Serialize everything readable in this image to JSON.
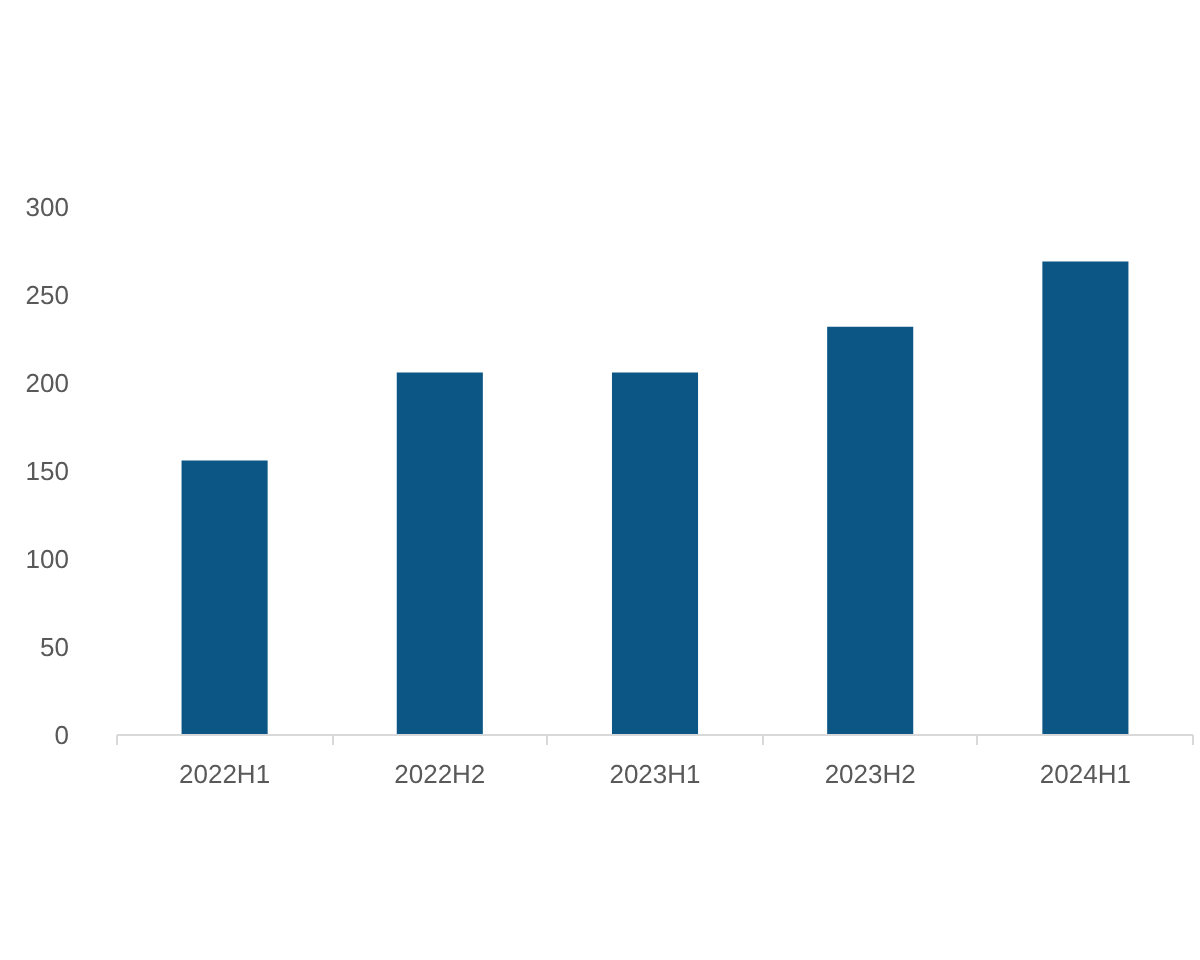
{
  "chart_data": {
    "type": "bar",
    "categories": [
      "2022H1",
      "2022H2",
      "2023H1",
      "2023H2",
      "2024H1"
    ],
    "values": [
      156,
      206,
      206,
      232,
      269
    ],
    "color": "#0b5685",
    "ylim": [
      0,
      300
    ],
    "yticks": [
      0,
      50,
      100,
      150,
      200,
      250,
      300
    ]
  }
}
